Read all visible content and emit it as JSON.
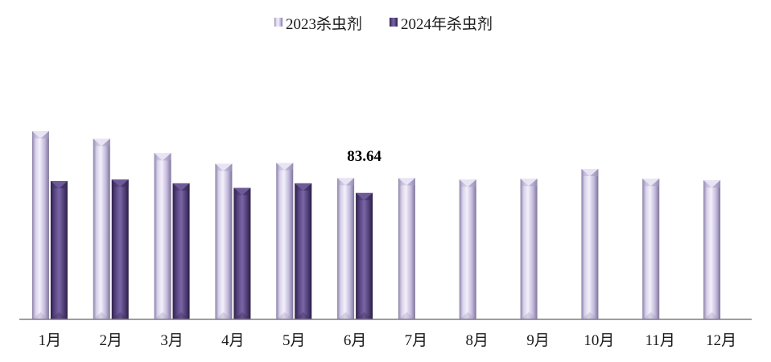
{
  "chart_data": {
    "type": "bar",
    "title": "",
    "xlabel": "",
    "ylabel": "",
    "categories": [
      "1月",
      "2月",
      "3月",
      "4月",
      "5月",
      "6月",
      "7月",
      "8月",
      "9月",
      "10月",
      "11月",
      "12月"
    ],
    "series": [
      {
        "name": "2023杀虫剂",
        "color": "#bfb6d6",
        "values": [
          124.5,
          119.5,
          110.0,
          103.0,
          103.5,
          93.5,
          93.5,
          92.5,
          93.0,
          99.5,
          93.0,
          92.0
        ]
      },
      {
        "name": "2024年杀虫剂",
        "color": "#5b4785",
        "values": [
          91.5,
          92.5,
          90.0,
          87.0,
          90.0,
          83.64,
          null,
          null,
          null,
          null,
          null,
          null
        ]
      }
    ],
    "data_labels": [
      {
        "series": 1,
        "index": 5,
        "text": "83.64"
      }
    ],
    "ylim": [
      0,
      190
    ],
    "grid": false,
    "legend": "top-center"
  }
}
